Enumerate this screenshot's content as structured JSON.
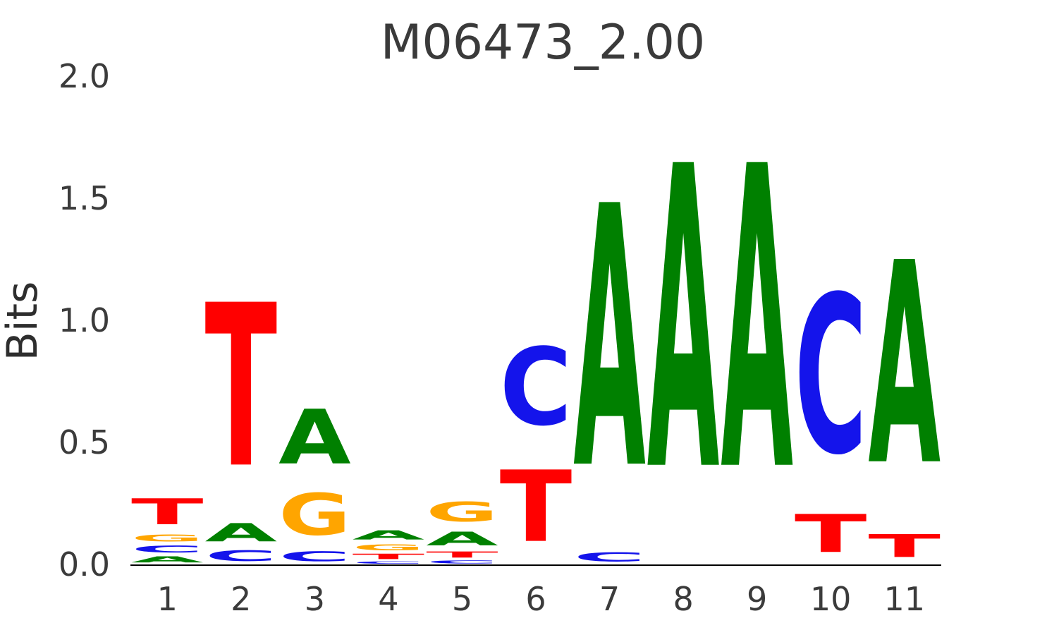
{
  "chart_data": {
    "type": "bar",
    "subtype": "sequence-logo",
    "title": "M06473_2.00",
    "xlabel": "",
    "ylabel": "Bits",
    "ylim": [
      0,
      2.0
    ],
    "yticks": [
      0.0,
      0.5,
      1.0,
      1.5,
      2.0
    ],
    "ytick_labels": [
      "0.0",
      "0.5",
      "1.0",
      "1.5",
      "2.0"
    ],
    "xtick_labels": [
      "1",
      "2",
      "3",
      "4",
      "5",
      "6",
      "7",
      "8",
      "9",
      "10",
      "11"
    ],
    "grid": false,
    "legend": "none",
    "base_colors": {
      "A": "#008000",
      "C": "#1414EB",
      "G": "#FFA500",
      "T": "#FF0000"
    },
    "axis_color": "#000000",
    "tick_label_color": "#3b3b3b",
    "title_color": "#3a3a3a",
    "positions": [
      {
        "position": 1,
        "stack": [
          {
            "base": "A",
            "bits": 0.04
          },
          {
            "base": "C",
            "bits": 0.045
          },
          {
            "base": "G",
            "bits": 0.045
          },
          {
            "base": "T",
            "bits": 0.17
          }
        ]
      },
      {
        "position": 2,
        "stack": [
          {
            "base": "C",
            "bits": 0.07
          },
          {
            "base": "A",
            "bits": 0.12
          },
          {
            "base": "T",
            "bits": 1.07
          }
        ]
      },
      {
        "position": 3,
        "stack": [
          {
            "base": "C",
            "bits": 0.065
          },
          {
            "base": "G",
            "bits": 0.275
          },
          {
            "base": "A",
            "bits": 0.36
          }
        ]
      },
      {
        "position": 4,
        "stack": [
          {
            "base": "C",
            "bits": 0.015
          },
          {
            "base": "T",
            "bits": 0.035
          },
          {
            "base": "G",
            "bits": 0.04
          },
          {
            "base": "A",
            "bits": 0.06
          }
        ]
      },
      {
        "position": 5,
        "stack": [
          {
            "base": "C",
            "bits": 0.02
          },
          {
            "base": "T",
            "bits": 0.04
          },
          {
            "base": "A",
            "bits": 0.09
          },
          {
            "base": "G",
            "bits": 0.13
          }
        ]
      },
      {
        "position": 6,
        "stack": [
          {
            "base": "T",
            "bits": 0.47
          },
          {
            "base": "C",
            "bits": 0.51
          }
        ]
      },
      {
        "position": 7,
        "stack": [
          {
            "base": "C",
            "bits": 0.06
          },
          {
            "base": "A",
            "bits": 1.72
          }
        ]
      },
      {
        "position": 8,
        "stack": [
          {
            "base": "A",
            "bits": 1.99
          }
        ]
      },
      {
        "position": 9,
        "stack": [
          {
            "base": "A",
            "bits": 1.99
          }
        ]
      },
      {
        "position": 10,
        "stack": [
          {
            "base": "T",
            "bits": 0.25
          },
          {
            "base": "C",
            "bits": 1.04
          }
        ]
      },
      {
        "position": 11,
        "stack": [
          {
            "base": "T",
            "bits": 0.15
          },
          {
            "base": "A",
            "bits": 1.33
          }
        ]
      }
    ]
  },
  "layout_note": "DNA sequence logo, 11 positions, information content in bits (0-2)"
}
